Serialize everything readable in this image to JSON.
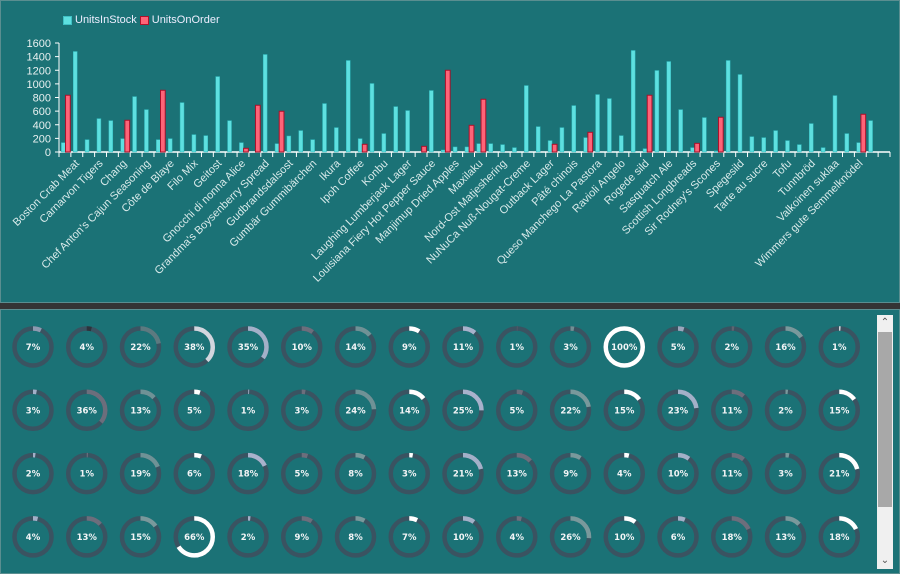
{
  "chart_data": {
    "type": "bar",
    "title": "",
    "xlabel": "",
    "ylabel": "",
    "ylim": [
      0,
      1600
    ],
    "yticks": [
      "0",
      "200",
      "400",
      "600",
      "800",
      "1000",
      "1200",
      "1400",
      "1600"
    ],
    "legend_position": "top-left",
    "grid": false,
    "categories": [
      "",
      "Boston Crab Meat",
      "",
      "Carnarvon Tigers",
      "",
      "Chang",
      "",
      "Chef Anton's Cajun Seasoning",
      "",
      "Côte de Blaye",
      "",
      "Filo Mix",
      "",
      "Geitost",
      "",
      "Gnocchi di nonna Alice",
      "",
      "Grandma's Boysenberry Spread",
      "",
      "Gudbrandsdalsost",
      "",
      "Gumbär Gummibärchen",
      "",
      "Ikura",
      "",
      "Ipoh Coffee",
      "",
      "Konbu",
      "",
      "Laughing Lumberjack Lager",
      "",
      "Louisiana Fiery Hot Pepper Sauce",
      "",
      "Manjimup Dried Apples",
      "",
      "Maxilaku",
      "",
      "Nord-Ost Matjeshering",
      "",
      "NuNuCa Nuß-Nougat-Creme",
      "",
      "Outback Lager",
      "",
      "Pâté chinois",
      "",
      "Queso Manchego La Pastora",
      "",
      "Ravioli Angelo",
      "",
      "Rogede sild",
      "",
      "Sasquatch Ale",
      "",
      "Scottish Longbreads",
      "",
      "Sir Rodney's Scones",
      "",
      "Spegesild",
      "",
      "Tarte au sucre",
      "",
      "Tofu",
      "",
      "Tunnbröd",
      "",
      "Valkoinen suklaa",
      "",
      "Wimmers gute Semmelknödel",
      "",
      ""
    ],
    "series": [
      {
        "name": "UnitsInStock",
        "color": "#5ee0e0",
        "values": [
          137,
          1475,
          181,
          490,
          460,
          196,
          813,
          622,
          181,
          196,
          725,
          255,
          240,
          1107,
          460,
          137,
          0,
          1431,
          122,
          235,
          314,
          181,
          711,
          358,
          1343,
          196,
          1005,
          270,
          666,
          608,
          0,
          902,
          29,
          74,
          74,
          122,
          122,
          108,
          64,
          975,
          372,
          167,
          358,
          681,
          211,
          843,
          784,
          240,
          1490,
          49,
          1196,
          1328,
          622,
          64,
          505,
          15,
          1343,
          1137,
          225,
          211,
          314,
          167,
          108,
          417,
          64,
          828,
          270,
          137,
          460,
          0
        ]
      },
      {
        "name": "UnitsOnOrder",
        "color": "#fe6478",
        "values": [
          833,
          0,
          0,
          0,
          0,
          466,
          0,
          0,
          906,
          0,
          0,
          0,
          0,
          0,
          0,
          54,
          686,
          0,
          598,
          0,
          0,
          0,
          0,
          0,
          0,
          113,
          0,
          0,
          0,
          0,
          83,
          0,
          1200,
          0,
          392,
          774,
          0,
          0,
          0,
          0,
          0,
          113,
          0,
          0,
          289,
          0,
          0,
          0,
          0,
          833,
          0,
          0,
          0,
          127,
          0,
          510,
          0,
          0,
          0,
          0,
          0,
          0,
          0,
          0,
          0,
          0,
          0,
          554,
          0,
          0
        ]
      }
    ]
  },
  "legend": {
    "items": [
      {
        "label": "UnitsInStock",
        "color": "#5ee0e0",
        "border": "#3fc0c4"
      },
      {
        "label": "UnitsOnOrder",
        "color": "#fe6478",
        "border": "#b0102a"
      }
    ]
  },
  "donuts": {
    "track_color": "#3a5361",
    "rows": [
      [
        {
          "v": 7,
          "c": "#8d9ab0"
        },
        {
          "v": 4,
          "c": "#2d333c"
        },
        {
          "v": 22,
          "c": "#5c7a80"
        },
        {
          "v": 38,
          "c": "#d2d6de"
        },
        {
          "v": 35,
          "c": "#a3b0c8"
        },
        {
          "v": 10,
          "c": "#6c6e7c"
        },
        {
          "v": 14,
          "c": "#6f9296"
        },
        {
          "v": 9,
          "c": "#ffffff"
        },
        {
          "v": 11,
          "c": "#a8b2cc"
        },
        {
          "v": 1,
          "c": "#4e5666"
        },
        {
          "v": 3,
          "c": "#728f94"
        },
        {
          "v": 100,
          "c": "#ffffff"
        },
        {
          "v": 5,
          "c": "#9aa6bc"
        },
        {
          "v": 2,
          "c": "#5f6470"
        },
        {
          "v": 16,
          "c": "#79999c"
        },
        {
          "v": 1,
          "c": "#ffffff"
        }
      ],
      [
        {
          "v": 3,
          "c": "#a3b0c8"
        },
        {
          "v": 36,
          "c": "#6c6e7c"
        },
        {
          "v": 13,
          "c": "#6f9296"
        },
        {
          "v": 5,
          "c": "#ffffff"
        },
        {
          "v": 1,
          "c": "#8d9ab0"
        },
        {
          "v": 3,
          "c": "#6c6e7c"
        },
        {
          "v": 24,
          "c": "#6f9296"
        },
        {
          "v": 14,
          "c": "#ffffff"
        },
        {
          "v": 25,
          "c": "#a8b2cc"
        },
        {
          "v": 5,
          "c": "#6c6e7c"
        },
        {
          "v": 22,
          "c": "#79999c"
        },
        {
          "v": 15,
          "c": "#ffffff"
        },
        {
          "v": 23,
          "c": "#a3b0c8"
        },
        {
          "v": 11,
          "c": "#6c6e7c"
        },
        {
          "v": 2,
          "c": "#79999c"
        },
        {
          "v": 15,
          "c": "#ffffff"
        }
      ],
      [
        {
          "v": 2,
          "c": "#a3b0c8"
        },
        {
          "v": 1,
          "c": "#6c6e7c"
        },
        {
          "v": 19,
          "c": "#6f9296"
        },
        {
          "v": 6,
          "c": "#ffffff"
        },
        {
          "v": 18,
          "c": "#a8b2cc"
        },
        {
          "v": 5,
          "c": "#6c6e7c"
        },
        {
          "v": 8,
          "c": "#79999c"
        },
        {
          "v": 3,
          "c": "#ffffff"
        },
        {
          "v": 21,
          "c": "#a3b0c8"
        },
        {
          "v": 13,
          "c": "#6c6e7c"
        },
        {
          "v": 9,
          "c": "#79999c"
        },
        {
          "v": 4,
          "c": "#ffffff"
        },
        {
          "v": 10,
          "c": "#a3b0c8"
        },
        {
          "v": 11,
          "c": "#6c6e7c"
        },
        {
          "v": 3,
          "c": "#79999c"
        },
        {
          "v": 21,
          "c": "#ffffff"
        }
      ],
      [
        {
          "v": 4,
          "c": "#a3b0c8"
        },
        {
          "v": 13,
          "c": "#6c6e7c"
        },
        {
          "v": 15,
          "c": "#79999c"
        },
        {
          "v": 66,
          "c": "#ffffff"
        },
        {
          "v": 2,
          "c": "#a3b0c8"
        },
        {
          "v": 9,
          "c": "#6c6e7c"
        },
        {
          "v": 8,
          "c": "#79999c"
        },
        {
          "v": 7,
          "c": "#ffffff"
        },
        {
          "v": 10,
          "c": "#a3b0c8"
        },
        {
          "v": 4,
          "c": "#6c6e7c"
        },
        {
          "v": 26,
          "c": "#79999c"
        },
        {
          "v": 10,
          "c": "#ffffff"
        },
        {
          "v": 6,
          "c": "#a3b0c8"
        },
        {
          "v": 18,
          "c": "#6c6e7c"
        },
        {
          "v": 13,
          "c": "#79999c"
        },
        {
          "v": 18,
          "c": "#ffffff"
        }
      ]
    ]
  },
  "scrollbar": {
    "up_icon": "▲",
    "down_icon": "▼"
  }
}
